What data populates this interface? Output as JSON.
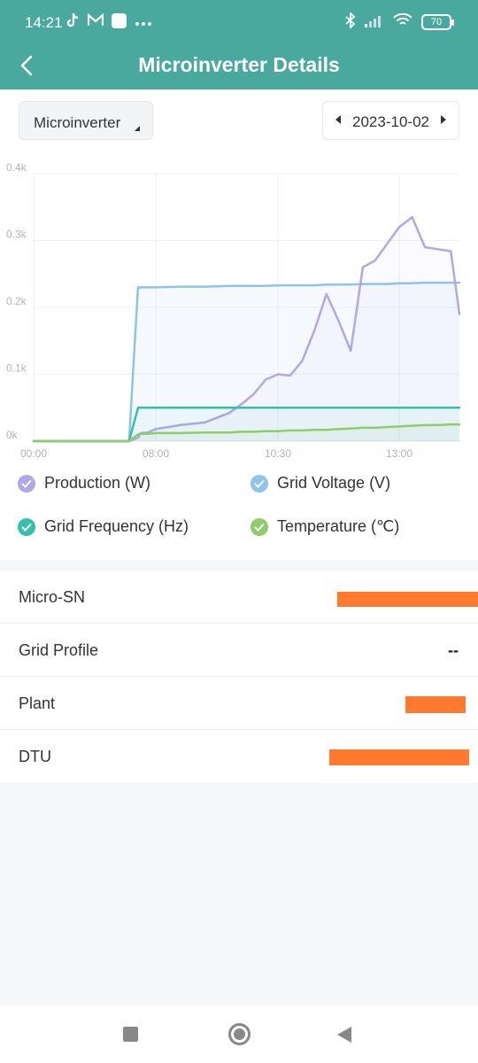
{
  "status_bar": {
    "time": "14:21",
    "battery": "70",
    "icons_left": [
      "tiktok-icon",
      "mail-icon",
      "app-icon",
      "more-icon"
    ],
    "icons_right": [
      "bluetooth-icon",
      "signal-icon",
      "wifi-icon",
      "battery-icon"
    ]
  },
  "app_bar": {
    "title": "Microinverter Details"
  },
  "filters": {
    "device_select": "Microinverter",
    "date": "2023-10-02"
  },
  "chart_data": {
    "type": "line",
    "x": [
      "00:00",
      "06:15",
      "06:50",
      "07:00",
      "07:30",
      "08:00",
      "08:30",
      "09:00",
      "09:30",
      "09:45",
      "10:00",
      "10:15",
      "10:30",
      "10:45",
      "11:00",
      "11:15",
      "11:30",
      "11:45",
      "12:00",
      "12:15",
      "12:30",
      "12:45",
      "13:00",
      "13:15",
      "13:30",
      "13:45",
      "14:00",
      "14:10"
    ],
    "x_ticks": [
      "00:00",
      "08:00",
      "10:30",
      "13:00"
    ],
    "y_ticks": [
      "0k",
      "0.1k",
      "0.2k",
      "0.3k",
      "0.4k"
    ],
    "ylim": [
      0,
      400
    ],
    "series": [
      {
        "name": "Production (W)",
        "color": "#b3a6e9",
        "values": [
          0,
          0,
          5,
          12,
          13,
          18,
          24,
          28,
          42,
          55,
          70,
          92,
          100,
          98,
          120,
          165,
          220,
          180,
          135,
          260,
          270,
          295,
          320,
          335,
          290,
          287,
          284,
          190
        ]
      },
      {
        "name": "Grid Voltage (V)",
        "color": "#8ec4ec",
        "values": [
          0,
          0,
          230,
          230,
          230,
          230,
          231,
          231,
          232,
          232,
          232,
          232,
          233,
          233,
          233,
          233,
          234,
          234,
          234,
          235,
          235,
          235,
          236,
          236,
          237,
          237,
          237,
          237
        ]
      },
      {
        "name": "Grid Frequency (Hz)",
        "color": "#36c0aa",
        "values": [
          0,
          0,
          50,
          50,
          50,
          50,
          50,
          50,
          50,
          50,
          50,
          50,
          50,
          50,
          50,
          50,
          50,
          50,
          50,
          50,
          50,
          50,
          50,
          50,
          50,
          50,
          50,
          50
        ]
      },
      {
        "name": "Temperature (℃)",
        "color": "#8fcc6a",
        "values": [
          0,
          0,
          10,
          11,
          11,
          12,
          12,
          13,
          13,
          14,
          14,
          15,
          15,
          16,
          16,
          17,
          17,
          18,
          19,
          20,
          20,
          21,
          22,
          23,
          24,
          24,
          25,
          25
        ]
      }
    ],
    "legend_position": "bottom",
    "grid": true
  },
  "legend": [
    {
      "label": "Production (W)",
      "color": "#b3a6e9"
    },
    {
      "label": "Grid Voltage (V)",
      "color": "#8ec4ec"
    },
    {
      "label": "Grid Frequency (Hz)",
      "color": "#36c0aa"
    },
    {
      "label": "Temperature (℃)",
      "color": "#8fcc6a"
    }
  ],
  "details": [
    {
      "label": "Micro-SN",
      "value": ""
    },
    {
      "label": "Grid Profile",
      "value": "--"
    },
    {
      "label": "Plant",
      "value": ""
    },
    {
      "label": "DTU",
      "value": ""
    }
  ],
  "nav_bar": {
    "buttons": [
      "recent-apps-button",
      "home-button",
      "back-button"
    ]
  }
}
